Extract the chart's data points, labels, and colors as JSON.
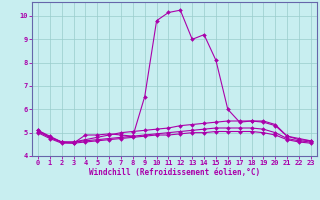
{
  "xlabel": "Windchill (Refroidissement éolien,°C)",
  "background_color": "#c8eef0",
  "line_color": "#aa00aa",
  "grid_color": "#99cccc",
  "border_color": "#6666aa",
  "xlim": [
    -0.5,
    23.5
  ],
  "ylim": [
    4.0,
    10.6
  ],
  "yticks": [
    4,
    5,
    6,
    7,
    8,
    9,
    10
  ],
  "xticks": [
    0,
    1,
    2,
    3,
    4,
    5,
    6,
    7,
    8,
    9,
    10,
    11,
    12,
    13,
    14,
    15,
    16,
    17,
    18,
    19,
    20,
    21,
    22,
    23
  ],
  "series": [
    [
      5.1,
      4.8,
      4.6,
      4.55,
      4.9,
      4.9,
      4.95,
      4.9,
      4.85,
      6.55,
      9.8,
      10.15,
      10.25,
      9.0,
      9.2,
      8.1,
      6.0,
      5.45,
      5.5,
      5.5,
      5.35,
      4.85,
      4.7,
      4.65
    ],
    [
      5.1,
      4.85,
      4.6,
      4.6,
      4.7,
      4.8,
      4.9,
      5.0,
      5.05,
      5.1,
      5.15,
      5.2,
      5.3,
      5.35,
      5.4,
      5.45,
      5.5,
      5.5,
      5.5,
      5.45,
      5.3,
      4.85,
      4.75,
      4.65
    ],
    [
      5.05,
      4.8,
      4.6,
      4.6,
      4.65,
      4.7,
      4.75,
      4.8,
      4.85,
      4.9,
      4.95,
      5.0,
      5.05,
      5.1,
      5.15,
      5.2,
      5.2,
      5.2,
      5.2,
      5.15,
      5.0,
      4.75,
      4.65,
      4.6
    ],
    [
      5.0,
      4.75,
      4.55,
      4.55,
      4.6,
      4.65,
      4.7,
      4.75,
      4.8,
      4.85,
      4.9,
      4.9,
      4.95,
      5.0,
      5.0,
      5.05,
      5.05,
      5.05,
      5.05,
      5.0,
      4.9,
      4.7,
      4.6,
      4.55
    ]
  ],
  "marker": "D",
  "markersize": 2.0,
  "linewidth": 0.8,
  "tick_fontsize": 5.0,
  "xlabel_fontsize": 5.5
}
